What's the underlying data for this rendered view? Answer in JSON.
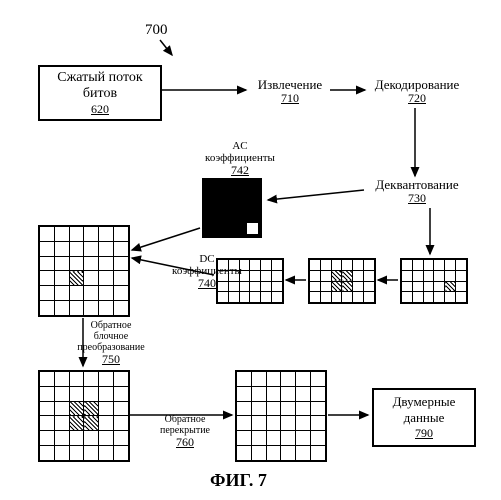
{
  "figure": {
    "number_label": "700",
    "caption": "ФИГ. 7",
    "bg": "#ffffff",
    "stroke": "#000000"
  },
  "nodes": {
    "bitstream": {
      "title1": "Сжатый поток",
      "title2": "битов",
      "ref": "620"
    },
    "extract": {
      "title": "Извлечение",
      "ref": "710"
    },
    "decode": {
      "title": "Декодирование",
      "ref": "720"
    },
    "dequant": {
      "title": "Деквантование",
      "ref": "730"
    },
    "ac": {
      "title1": "AC",
      "title2": "коэффициенты",
      "ref": "742"
    },
    "dc": {
      "title1": "DC",
      "title2": "коэффициенты",
      "ref": "740"
    },
    "invblock": {
      "title1": "Обратное",
      "title2": "блочное",
      "title3": "преобразование",
      "ref": "750"
    },
    "invoverlap": {
      "title1": "Обратное",
      "title2": "перекрытие",
      "ref": "760"
    },
    "output": {
      "title1": "Двумерные",
      "title2": "данные",
      "ref": "790"
    }
  },
  "grids": {
    "small_cols": 6,
    "small_rows": 4,
    "big_cols": 6,
    "big_rows": 6
  }
}
